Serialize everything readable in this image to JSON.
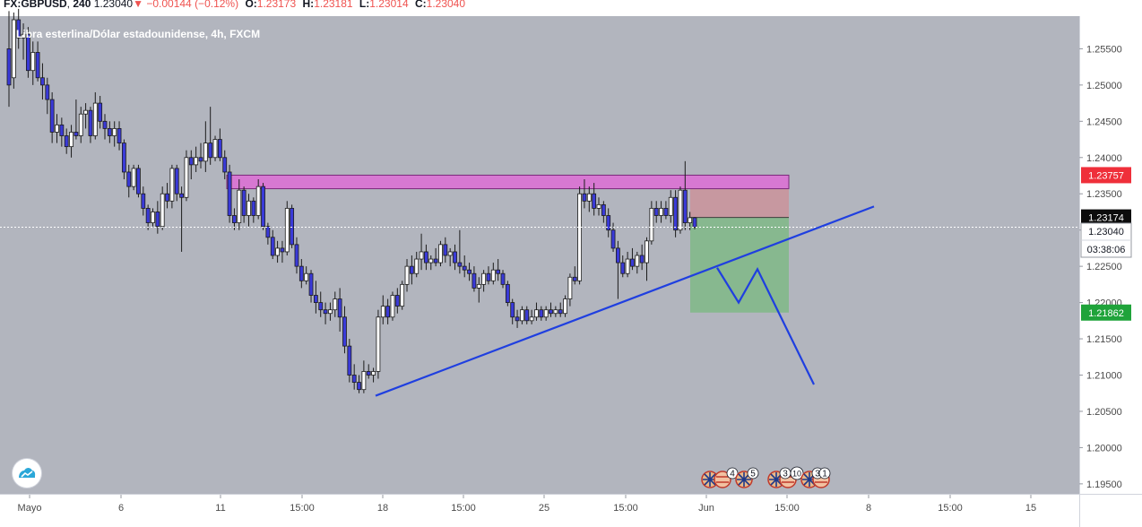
{
  "header": {
    "symbol": "FX:GBPUSD",
    "interval": "240",
    "last": "1.23040",
    "change_arrow": "▼",
    "change": "−0.00144 (−0.12%)",
    "o_label": "O:",
    "o": "1.23173",
    "h_label": "H:",
    "h": "1.23181",
    "l_label": "L:",
    "l": "1.23014",
    "c_label": "C:",
    "c": "1.23040"
  },
  "subtitle": "Libra esterlina/Dólar estadounidense, 4h, FXCM",
  "price_labels": {
    "resistance": "1.23757",
    "current": "1.23174",
    "last_price": "1.23040",
    "countdown": "03:38:06",
    "target": "1.21862"
  },
  "event_badges": [
    "4",
    "5",
    "3",
    "10",
    "3",
    "1"
  ],
  "colors": {
    "plot_bg": "#b2b5be",
    "panel_bg": "#ffffff",
    "bull": "#ffffff",
    "bear": "#3a3ad8",
    "wick": "#1c1c1c",
    "zone": "#d778d2",
    "stop_fill": "#c9959c",
    "target_fill": "#85b88c",
    "trendline": "#1f3fe0",
    "label_red": "#ef2f3a",
    "label_black": "#0c0c0c",
    "label_green": "#1fa33a",
    "negative": "#ef5350"
  },
  "icons": [
    "tradingview-logo-icon",
    "uk-flag-icon",
    "us-flag-icon"
  ],
  "chart_data": {
    "type": "candlestick",
    "title": "Libra esterlina/Dólar estadounidense, 4h, FXCM",
    "y_ticks": [
      "1.25500",
      "1.25000",
      "1.24500",
      "1.24000",
      "1.23500",
      "1.23000",
      "1.22500",
      "1.22000",
      "1.21500",
      "1.21000",
      "1.20500",
      "1.20000",
      "1.19500"
    ],
    "x_ticks": [
      "Mayo",
      "6",
      "11",
      "15:00",
      "18",
      "15:00",
      "25",
      "15:00",
      "Jun",
      "15:00",
      "8",
      "15:00",
      "15"
    ],
    "ylim": [
      1.1935,
      1.2595
    ],
    "grid": false,
    "candles": [
      {
        "o": 1.255,
        "h": 1.2602,
        "l": 1.247,
        "c": 1.25
      },
      {
        "o": 1.251,
        "h": 1.26,
        "l": 1.2495,
        "c": 1.259
      },
      {
        "o": 1.259,
        "h": 1.2605,
        "l": 1.255,
        "c": 1.2565
      },
      {
        "o": 1.2565,
        "h": 1.2585,
        "l": 1.2535,
        "c": 1.257
      },
      {
        "o": 1.257,
        "h": 1.258,
        "l": 1.251,
        "c": 1.252
      },
      {
        "o": 1.252,
        "h": 1.256,
        "l": 1.25,
        "c": 1.2545
      },
      {
        "o": 1.2545,
        "h": 1.256,
        "l": 1.2505,
        "c": 1.251
      },
      {
        "o": 1.251,
        "h": 1.253,
        "l": 1.248,
        "c": 1.25
      },
      {
        "o": 1.25,
        "h": 1.251,
        "l": 1.246,
        "c": 1.248
      },
      {
        "o": 1.248,
        "h": 1.249,
        "l": 1.242,
        "c": 1.2435
      },
      {
        "o": 1.2435,
        "h": 1.246,
        "l": 1.242,
        "c": 1.2445
      },
      {
        "o": 1.2445,
        "h": 1.2455,
        "l": 1.2415,
        "c": 1.243
      },
      {
        "o": 1.243,
        "h": 1.244,
        "l": 1.2405,
        "c": 1.2415
      },
      {
        "o": 1.2415,
        "h": 1.2445,
        "l": 1.24,
        "c": 1.2435
      },
      {
        "o": 1.2435,
        "h": 1.248,
        "l": 1.2425,
        "c": 1.243
      },
      {
        "o": 1.243,
        "h": 1.247,
        "l": 1.242,
        "c": 1.246
      },
      {
        "o": 1.246,
        "h": 1.2475,
        "l": 1.244,
        "c": 1.2465
      },
      {
        "o": 1.2465,
        "h": 1.247,
        "l": 1.242,
        "c": 1.243
      },
      {
        "o": 1.243,
        "h": 1.249,
        "l": 1.2425,
        "c": 1.2475
      },
      {
        "o": 1.2475,
        "h": 1.2485,
        "l": 1.244,
        "c": 1.245
      },
      {
        "o": 1.245,
        "h": 1.246,
        "l": 1.2425,
        "c": 1.244
      },
      {
        "o": 1.244,
        "h": 1.245,
        "l": 1.242,
        "c": 1.243
      },
      {
        "o": 1.243,
        "h": 1.245,
        "l": 1.2415,
        "c": 1.244
      },
      {
        "o": 1.244,
        "h": 1.245,
        "l": 1.241,
        "c": 1.242
      },
      {
        "o": 1.242,
        "h": 1.2425,
        "l": 1.237,
        "c": 1.238
      },
      {
        "o": 1.238,
        "h": 1.239,
        "l": 1.2345,
        "c": 1.236
      },
      {
        "o": 1.236,
        "h": 1.239,
        "l": 1.2355,
        "c": 1.2385
      },
      {
        "o": 1.2385,
        "h": 1.239,
        "l": 1.2345,
        "c": 1.235
      },
      {
        "o": 1.235,
        "h": 1.236,
        "l": 1.232,
        "c": 1.233
      },
      {
        "o": 1.233,
        "h": 1.2335,
        "l": 1.23,
        "c": 1.231
      },
      {
        "o": 1.231,
        "h": 1.233,
        "l": 1.2305,
        "c": 1.2325
      },
      {
        "o": 1.2325,
        "h": 1.234,
        "l": 1.2295,
        "c": 1.2305
      },
      {
        "o": 1.2305,
        "h": 1.236,
        "l": 1.23,
        "c": 1.235
      },
      {
        "o": 1.235,
        "h": 1.2365,
        "l": 1.233,
        "c": 1.234
      },
      {
        "o": 1.234,
        "h": 1.239,
        "l": 1.233,
        "c": 1.2385
      },
      {
        "o": 1.2385,
        "h": 1.239,
        "l": 1.234,
        "c": 1.235
      },
      {
        "o": 1.235,
        "h": 1.236,
        "l": 1.227,
        "c": 1.2345
      },
      {
        "o": 1.2345,
        "h": 1.241,
        "l": 1.234,
        "c": 1.24
      },
      {
        "o": 1.24,
        "h": 1.241,
        "l": 1.237,
        "c": 1.239
      },
      {
        "o": 1.239,
        "h": 1.2415,
        "l": 1.238,
        "c": 1.24
      },
      {
        "o": 1.24,
        "h": 1.242,
        "l": 1.2385,
        "c": 1.2395
      },
      {
        "o": 1.2395,
        "h": 1.245,
        "l": 1.238,
        "c": 1.242
      },
      {
        "o": 1.242,
        "h": 1.247,
        "l": 1.239,
        "c": 1.24
      },
      {
        "o": 1.24,
        "h": 1.243,
        "l": 1.2395,
        "c": 1.2425
      },
      {
        "o": 1.2425,
        "h": 1.244,
        "l": 1.2395,
        "c": 1.24
      },
      {
        "o": 1.24,
        "h": 1.241,
        "l": 1.237,
        "c": 1.238
      },
      {
        "o": 1.238,
        "h": 1.239,
        "l": 1.231,
        "c": 1.232
      },
      {
        "o": 1.232,
        "h": 1.233,
        "l": 1.23,
        "c": 1.231
      },
      {
        "o": 1.231,
        "h": 1.237,
        "l": 1.23,
        "c": 1.2355
      },
      {
        "o": 1.2355,
        "h": 1.236,
        "l": 1.231,
        "c": 1.232
      },
      {
        "o": 1.232,
        "h": 1.235,
        "l": 1.2305,
        "c": 1.234
      },
      {
        "o": 1.234,
        "h": 1.2345,
        "l": 1.231,
        "c": 1.232
      },
      {
        "o": 1.232,
        "h": 1.237,
        "l": 1.2315,
        "c": 1.236
      },
      {
        "o": 1.236,
        "h": 1.2365,
        "l": 1.23,
        "c": 1.2305
      },
      {
        "o": 1.2305,
        "h": 1.231,
        "l": 1.228,
        "c": 1.229
      },
      {
        "o": 1.229,
        "h": 1.23,
        "l": 1.226,
        "c": 1.2265
      },
      {
        "o": 1.2265,
        "h": 1.2285,
        "l": 1.2255,
        "c": 1.2275
      },
      {
        "o": 1.2275,
        "h": 1.2285,
        "l": 1.2255,
        "c": 1.227
      },
      {
        "o": 1.227,
        "h": 1.234,
        "l": 1.2265,
        "c": 1.233
      },
      {
        "o": 1.233,
        "h": 1.2335,
        "l": 1.2275,
        "c": 1.228
      },
      {
        "o": 1.228,
        "h": 1.229,
        "l": 1.224,
        "c": 1.225
      },
      {
        "o": 1.225,
        "h": 1.226,
        "l": 1.222,
        "c": 1.223
      },
      {
        "o": 1.223,
        "h": 1.225,
        "l": 1.2225,
        "c": 1.224
      },
      {
        "o": 1.224,
        "h": 1.2245,
        "l": 1.22,
        "c": 1.221
      },
      {
        "o": 1.221,
        "h": 1.223,
        "l": 1.2185,
        "c": 1.22
      },
      {
        "o": 1.22,
        "h": 1.2215,
        "l": 1.218,
        "c": 1.219
      },
      {
        "o": 1.219,
        "h": 1.22,
        "l": 1.217,
        "c": 1.2185
      },
      {
        "o": 1.2185,
        "h": 1.22,
        "l": 1.2175,
        "c": 1.219
      },
      {
        "o": 1.219,
        "h": 1.2215,
        "l": 1.218,
        "c": 1.2205
      },
      {
        "o": 1.2205,
        "h": 1.222,
        "l": 1.216,
        "c": 1.218
      },
      {
        "o": 1.218,
        "h": 1.2195,
        "l": 1.213,
        "c": 1.214
      },
      {
        "o": 1.214,
        "h": 1.215,
        "l": 1.209,
        "c": 1.21
      },
      {
        "o": 1.21,
        "h": 1.2115,
        "l": 1.208,
        "c": 1.209
      },
      {
        "o": 1.209,
        "h": 1.21,
        "l": 1.2075,
        "c": 1.208
      },
      {
        "o": 1.208,
        "h": 1.212,
        "l": 1.2075,
        "c": 1.2105
      },
      {
        "o": 1.2105,
        "h": 1.2115,
        "l": 1.2095,
        "c": 1.21
      },
      {
        "o": 1.21,
        "h": 1.211,
        "l": 1.209,
        "c": 1.2105
      },
      {
        "o": 1.2105,
        "h": 1.219,
        "l": 1.2095,
        "c": 1.218
      },
      {
        "o": 1.218,
        "h": 1.221,
        "l": 1.217,
        "c": 1.2195
      },
      {
        "o": 1.2195,
        "h": 1.2205,
        "l": 1.217,
        "c": 1.218
      },
      {
        "o": 1.218,
        "h": 1.2215,
        "l": 1.2175,
        "c": 1.221
      },
      {
        "o": 1.221,
        "h": 1.222,
        "l": 1.2185,
        "c": 1.2195
      },
      {
        "o": 1.2195,
        "h": 1.223,
        "l": 1.219,
        "c": 1.2225
      },
      {
        "o": 1.2225,
        "h": 1.226,
        "l": 1.2215,
        "c": 1.225
      },
      {
        "o": 1.225,
        "h": 1.2265,
        "l": 1.2225,
        "c": 1.224
      },
      {
        "o": 1.224,
        "h": 1.227,
        "l": 1.2235,
        "c": 1.226
      },
      {
        "o": 1.226,
        "h": 1.2295,
        "l": 1.2245,
        "c": 1.227
      },
      {
        "o": 1.227,
        "h": 1.228,
        "l": 1.2245,
        "c": 1.2255
      },
      {
        "o": 1.2255,
        "h": 1.2265,
        "l": 1.2245,
        "c": 1.226
      },
      {
        "o": 1.226,
        "h": 1.2275,
        "l": 1.225,
        "c": 1.2255
      },
      {
        "o": 1.2255,
        "h": 1.2285,
        "l": 1.225,
        "c": 1.228
      },
      {
        "o": 1.228,
        "h": 1.229,
        "l": 1.2255,
        "c": 1.2265
      },
      {
        "o": 1.2265,
        "h": 1.2275,
        "l": 1.225,
        "c": 1.227
      },
      {
        "o": 1.227,
        "h": 1.228,
        "l": 1.2245,
        "c": 1.2255
      },
      {
        "o": 1.2255,
        "h": 1.23,
        "l": 1.224,
        "c": 1.225
      },
      {
        "o": 1.225,
        "h": 1.2265,
        "l": 1.2235,
        "c": 1.2245
      },
      {
        "o": 1.2245,
        "h": 1.2255,
        "l": 1.223,
        "c": 1.224
      },
      {
        "o": 1.224,
        "h": 1.225,
        "l": 1.2215,
        "c": 1.222
      },
      {
        "o": 1.222,
        "h": 1.2235,
        "l": 1.22,
        "c": 1.2225
      },
      {
        "o": 1.2225,
        "h": 1.2245,
        "l": 1.2215,
        "c": 1.224
      },
      {
        "o": 1.224,
        "h": 1.225,
        "l": 1.2225,
        "c": 1.223
      },
      {
        "o": 1.223,
        "h": 1.2255,
        "l": 1.2225,
        "c": 1.2245
      },
      {
        "o": 1.2245,
        "h": 1.226,
        "l": 1.223,
        "c": 1.224
      },
      {
        "o": 1.224,
        "h": 1.2245,
        "l": 1.222,
        "c": 1.2225
      },
      {
        "o": 1.2225,
        "h": 1.223,
        "l": 1.2195,
        "c": 1.22
      },
      {
        "o": 1.22,
        "h": 1.2205,
        "l": 1.217,
        "c": 1.218
      },
      {
        "o": 1.218,
        "h": 1.219,
        "l": 1.2165,
        "c": 1.2175
      },
      {
        "o": 1.2175,
        "h": 1.2195,
        "l": 1.217,
        "c": 1.219
      },
      {
        "o": 1.219,
        "h": 1.2195,
        "l": 1.217,
        "c": 1.2175
      },
      {
        "o": 1.2175,
        "h": 1.219,
        "l": 1.217,
        "c": 1.218
      },
      {
        "o": 1.218,
        "h": 1.22,
        "l": 1.2175,
        "c": 1.219
      },
      {
        "o": 1.219,
        "h": 1.2195,
        "l": 1.2175,
        "c": 1.218
      },
      {
        "o": 1.218,
        "h": 1.2195,
        "l": 1.2175,
        "c": 1.219
      },
      {
        "o": 1.219,
        "h": 1.22,
        "l": 1.218,
        "c": 1.2185
      },
      {
        "o": 1.2185,
        "h": 1.2195,
        "l": 1.218,
        "c": 1.219
      },
      {
        "o": 1.219,
        "h": 1.22,
        "l": 1.218,
        "c": 1.2185
      },
      {
        "o": 1.2185,
        "h": 1.221,
        "l": 1.218,
        "c": 1.2205
      },
      {
        "o": 1.2205,
        "h": 1.224,
        "l": 1.2195,
        "c": 1.2235
      },
      {
        "o": 1.2235,
        "h": 1.225,
        "l": 1.2225,
        "c": 1.223
      },
      {
        "o": 1.223,
        "h": 1.236,
        "l": 1.2225,
        "c": 1.235
      },
      {
        "o": 1.235,
        "h": 1.237,
        "l": 1.233,
        "c": 1.234
      },
      {
        "o": 1.234,
        "h": 1.236,
        "l": 1.2325,
        "c": 1.235
      },
      {
        "o": 1.235,
        "h": 1.2365,
        "l": 1.232,
        "c": 1.233
      },
      {
        "o": 1.233,
        "h": 1.2345,
        "l": 1.232,
        "c": 1.2335
      },
      {
        "o": 1.2335,
        "h": 1.234,
        "l": 1.231,
        "c": 1.232
      },
      {
        "o": 1.232,
        "h": 1.233,
        "l": 1.229,
        "c": 1.23
      },
      {
        "o": 1.23,
        "h": 1.231,
        "l": 1.227,
        "c": 1.2275
      },
      {
        "o": 1.2275,
        "h": 1.2285,
        "l": 1.2205,
        "c": 1.2255
      },
      {
        "o": 1.2255,
        "h": 1.2265,
        "l": 1.2235,
        "c": 1.224
      },
      {
        "o": 1.224,
        "h": 1.227,
        "l": 1.2235,
        "c": 1.226
      },
      {
        "o": 1.226,
        "h": 1.2275,
        "l": 1.2245,
        "c": 1.225
      },
      {
        "o": 1.225,
        "h": 1.227,
        "l": 1.224,
        "c": 1.2265
      },
      {
        "o": 1.2265,
        "h": 1.228,
        "l": 1.2245,
        "c": 1.2255
      },
      {
        "o": 1.2255,
        "h": 1.229,
        "l": 1.223,
        "c": 1.2285
      },
      {
        "o": 1.2285,
        "h": 1.234,
        "l": 1.228,
        "c": 1.233
      },
      {
        "o": 1.233,
        "h": 1.234,
        "l": 1.231,
        "c": 1.232
      },
      {
        "o": 1.232,
        "h": 1.234,
        "l": 1.231,
        "c": 1.233
      },
      {
        "o": 1.233,
        "h": 1.234,
        "l": 1.2315,
        "c": 1.232
      },
      {
        "o": 1.232,
        "h": 1.2355,
        "l": 1.231,
        "c": 1.2345
      },
      {
        "o": 1.2345,
        "h": 1.2355,
        "l": 1.229,
        "c": 1.23
      },
      {
        "o": 1.23,
        "h": 1.236,
        "l": 1.2295,
        "c": 1.2355
      },
      {
        "o": 1.2355,
        "h": 1.2395,
        "l": 1.23,
        "c": 1.231
      },
      {
        "o": 1.231,
        "h": 1.2325,
        "l": 1.23,
        "c": 1.2317
      },
      {
        "o": 1.2317,
        "h": 1.2318,
        "l": 1.2301,
        "c": 1.2304
      }
    ]
  },
  "overlays": {
    "zone_high": 1.23757,
    "zone_low": 1.2357,
    "stop_level": 1.23757,
    "entry_level": 1.23174,
    "target_level": 1.21862,
    "wedge_line": {
      "from": [
        419,
        1.20715
      ],
      "to": [
        975,
        1.23325
      ]
    },
    "projection": [
      [
        800,
        1.2248
      ],
      [
        824,
        1.22
      ],
      [
        845,
        1.2246
      ],
      [
        908,
        1.2087
      ]
    ]
  }
}
